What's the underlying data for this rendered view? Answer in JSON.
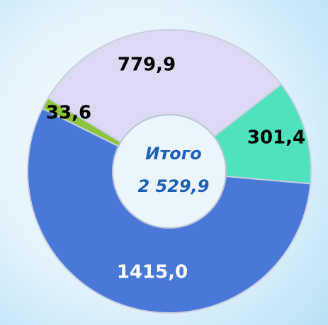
{
  "chart_data": {
    "type": "pie",
    "categories": [
      null,
      null,
      null,
      null
    ],
    "values": [
      1415.0,
      33.6,
      779.9,
      301.4
    ],
    "value_labels": [
      "1415,0",
      "33,6",
      "779,9",
      "301,4"
    ],
    "colors": [
      "#4a78d8",
      "#8cc43c",
      "#ddd9f3",
      "#4fe2bd"
    ],
    "center_label": [
      "Итого",
      "2 529,9"
    ]
  }
}
